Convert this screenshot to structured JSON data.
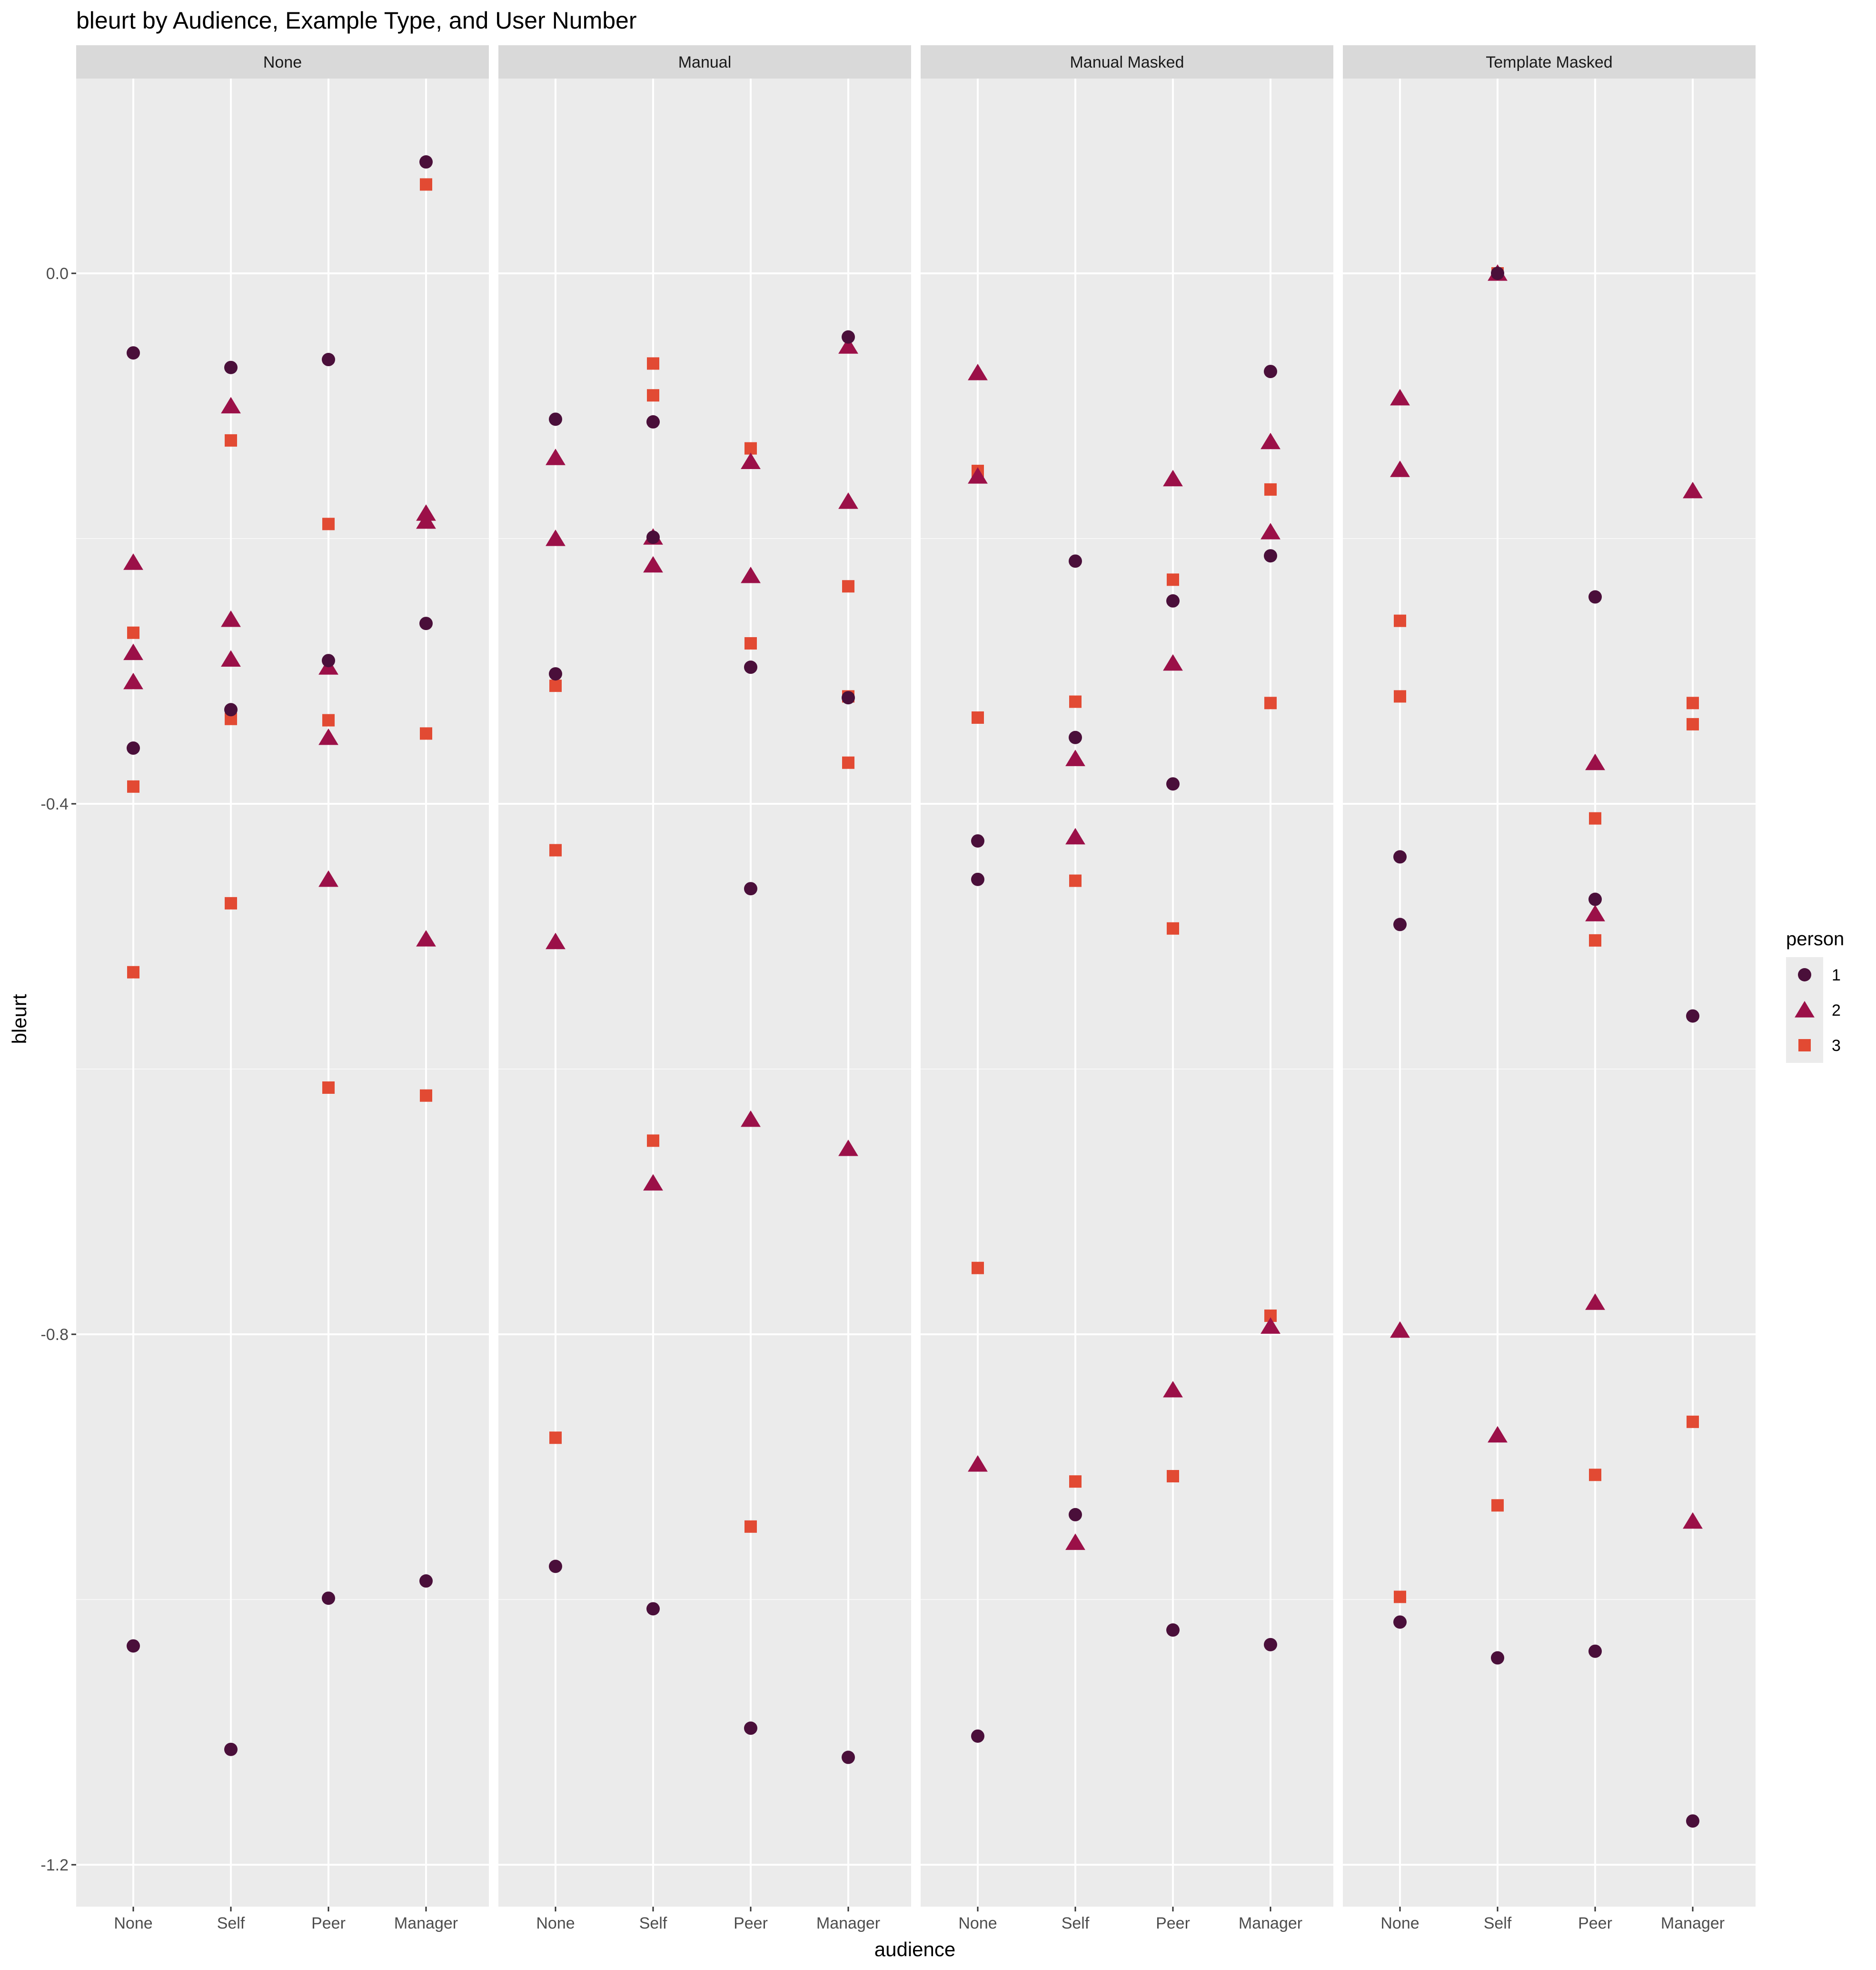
{
  "chart_data": {
    "type": "scatter",
    "title": "bleurt by Audience, Example Type, and User Number",
    "xlabel": "audience",
    "ylabel": "bleurt",
    "categories": [
      "None",
      "Self",
      "Peer",
      "Manager"
    ],
    "facets": [
      "None",
      "Manual",
      "Manual Masked",
      "Template Masked"
    ],
    "y_ticks": [
      0.0,
      -0.4,
      -0.8,
      -1.2
    ],
    "y_tick_labels": [
      "0.0",
      "-0.4",
      "-0.8",
      "-1.2"
    ],
    "ylim": [
      -1.23,
      0.16
    ],
    "grid": true,
    "legend": {
      "title": "person",
      "position": "right"
    },
    "colors": {
      "1": "#4a0f3a",
      "2": "#9b1048",
      "3": "#e24a33"
    },
    "series": [
      {
        "name": "1",
        "shape": "circle",
        "points": [
          {
            "facet": "None",
            "x": "None",
            "y": -0.06
          },
          {
            "facet": "None",
            "x": "None",
            "y": -0.358
          },
          {
            "facet": "None",
            "x": "None",
            "y": -1.035
          },
          {
            "facet": "None",
            "x": "Self",
            "y": -0.071
          },
          {
            "facet": "None",
            "x": "Self",
            "y": -0.329
          },
          {
            "facet": "None",
            "x": "Self",
            "y": -1.113
          },
          {
            "facet": "None",
            "x": "Peer",
            "y": -0.065
          },
          {
            "facet": "None",
            "x": "Peer",
            "y": -0.292
          },
          {
            "facet": "None",
            "x": "Peer",
            "y": -0.999
          },
          {
            "facet": "None",
            "x": "Manager",
            "y": 0.084
          },
          {
            "facet": "None",
            "x": "Manager",
            "y": -0.264
          },
          {
            "facet": "None",
            "x": "Manager",
            "y": -0.986
          },
          {
            "facet": "Manual",
            "x": "None",
            "y": -0.11
          },
          {
            "facet": "Manual",
            "x": "None",
            "y": -0.302
          },
          {
            "facet": "Manual",
            "x": "None",
            "y": -0.975
          },
          {
            "facet": "Manual",
            "x": "Self",
            "y": -0.112
          },
          {
            "facet": "Manual",
            "x": "Self",
            "y": -0.199
          },
          {
            "facet": "Manual",
            "x": "Self",
            "y": -1.007
          },
          {
            "facet": "Manual",
            "x": "Peer",
            "y": -0.297
          },
          {
            "facet": "Manual",
            "x": "Peer",
            "y": -0.464
          },
          {
            "facet": "Manual",
            "x": "Peer",
            "y": -1.097
          },
          {
            "facet": "Manual",
            "x": "Manager",
            "y": -0.048
          },
          {
            "facet": "Manual",
            "x": "Manager",
            "y": -0.32
          },
          {
            "facet": "Manual",
            "x": "Manager",
            "y": -1.119
          },
          {
            "facet": "Manual Masked",
            "x": "None",
            "y": -0.428
          },
          {
            "facet": "Manual Masked",
            "x": "None",
            "y": -0.457
          },
          {
            "facet": "Manual Masked",
            "x": "None",
            "y": -1.103
          },
          {
            "facet": "Manual Masked",
            "x": "Self",
            "y": -0.217
          },
          {
            "facet": "Manual Masked",
            "x": "Self",
            "y": -0.35
          },
          {
            "facet": "Manual Masked",
            "x": "Self",
            "y": -0.936
          },
          {
            "facet": "Manual Masked",
            "x": "Peer",
            "y": -0.247
          },
          {
            "facet": "Manual Masked",
            "x": "Peer",
            "y": -0.385
          },
          {
            "facet": "Manual Masked",
            "x": "Peer",
            "y": -1.023
          },
          {
            "facet": "Manual Masked",
            "x": "Manager",
            "y": -0.074
          },
          {
            "facet": "Manual Masked",
            "x": "Manager",
            "y": -0.213
          },
          {
            "facet": "Manual Masked",
            "x": "Manager",
            "y": -1.034
          },
          {
            "facet": "Template Masked",
            "x": "None",
            "y": -0.44
          },
          {
            "facet": "Template Masked",
            "x": "None",
            "y": -0.491
          },
          {
            "facet": "Template Masked",
            "x": "None",
            "y": -1.017
          },
          {
            "facet": "Template Masked",
            "x": "Self",
            "y": 0.0
          },
          {
            "facet": "Template Masked",
            "x": "Self",
            "y": -1.044
          },
          {
            "facet": "Template Masked",
            "x": "Peer",
            "y": -0.244
          },
          {
            "facet": "Template Masked",
            "x": "Peer",
            "y": -0.472
          },
          {
            "facet": "Template Masked",
            "x": "Peer",
            "y": -1.039
          },
          {
            "facet": "Template Masked",
            "x": "Manager",
            "y": -0.56
          },
          {
            "facet": "Template Masked",
            "x": "Manager",
            "y": -1.167
          }
        ]
      },
      {
        "name": "2",
        "shape": "triangle",
        "points": [
          {
            "facet": "None",
            "x": "None",
            "y": -0.218
          },
          {
            "facet": "None",
            "x": "None",
            "y": -0.286
          },
          {
            "facet": "None",
            "x": "None",
            "y": -0.308
          },
          {
            "facet": "None",
            "x": "Self",
            "y": -0.1
          },
          {
            "facet": "None",
            "x": "Self",
            "y": -0.261
          },
          {
            "facet": "None",
            "x": "Self",
            "y": -0.291
          },
          {
            "facet": "None",
            "x": "Peer",
            "y": -0.297
          },
          {
            "facet": "None",
            "x": "Peer",
            "y": -0.35
          },
          {
            "facet": "None",
            "x": "Peer",
            "y": -0.457
          },
          {
            "facet": "None",
            "x": "Manager",
            "y": -0.181
          },
          {
            "facet": "None",
            "x": "Manager",
            "y": -0.187
          },
          {
            "facet": "None",
            "x": "Manager",
            "y": -0.502
          },
          {
            "facet": "Manual",
            "x": "None",
            "y": -0.139
          },
          {
            "facet": "Manual",
            "x": "None",
            "y": -0.2
          },
          {
            "facet": "Manual",
            "x": "None",
            "y": -0.504
          },
          {
            "facet": "Manual",
            "x": "Self",
            "y": -0.199
          },
          {
            "facet": "Manual",
            "x": "Self",
            "y": -0.22
          },
          {
            "facet": "Manual",
            "x": "Self",
            "y": -0.686
          },
          {
            "facet": "Manual",
            "x": "Peer",
            "y": -0.142
          },
          {
            "facet": "Manual",
            "x": "Peer",
            "y": -0.228
          },
          {
            "facet": "Manual",
            "x": "Peer",
            "y": -0.638
          },
          {
            "facet": "Manual",
            "x": "Manager",
            "y": -0.055
          },
          {
            "facet": "Manual",
            "x": "Manager",
            "y": -0.172
          },
          {
            "facet": "Manual",
            "x": "Manager",
            "y": -0.66
          },
          {
            "facet": "Manual Masked",
            "x": "None",
            "y": -0.075
          },
          {
            "facet": "Manual Masked",
            "x": "None",
            "y": -0.153
          },
          {
            "facet": "Manual Masked",
            "x": "None",
            "y": -0.898
          },
          {
            "facet": "Manual Masked",
            "x": "Self",
            "y": -0.366
          },
          {
            "facet": "Manual Masked",
            "x": "Self",
            "y": -0.425
          },
          {
            "facet": "Manual Masked",
            "x": "Self",
            "y": -0.957
          },
          {
            "facet": "Manual Masked",
            "x": "Peer",
            "y": -0.155
          },
          {
            "facet": "Manual Masked",
            "x": "Peer",
            "y": -0.294
          },
          {
            "facet": "Manual Masked",
            "x": "Peer",
            "y": -0.842
          },
          {
            "facet": "Manual Masked",
            "x": "Manager",
            "y": -0.127
          },
          {
            "facet": "Manual Masked",
            "x": "Manager",
            "y": -0.195
          },
          {
            "facet": "Manual Masked",
            "x": "Manager",
            "y": -0.794
          },
          {
            "facet": "Template Masked",
            "x": "None",
            "y": -0.094
          },
          {
            "facet": "Template Masked",
            "x": "None",
            "y": -0.148
          },
          {
            "facet": "Template Masked",
            "x": "None",
            "y": -0.797
          },
          {
            "facet": "Template Masked",
            "x": "Self",
            "y": 0.0
          },
          {
            "facet": "Template Masked",
            "x": "Self",
            "y": -0.876
          },
          {
            "facet": "Template Masked",
            "x": "Peer",
            "y": -0.369
          },
          {
            "facet": "Template Masked",
            "x": "Peer",
            "y": -0.483
          },
          {
            "facet": "Template Masked",
            "x": "Peer",
            "y": -0.776
          },
          {
            "facet": "Template Masked",
            "x": "Manager",
            "y": -0.164
          },
          {
            "facet": "Template Masked",
            "x": "Manager",
            "y": -0.941
          }
        ]
      },
      {
        "name": "3",
        "shape": "square",
        "points": [
          {
            "facet": "None",
            "x": "None",
            "y": -0.271
          },
          {
            "facet": "None",
            "x": "None",
            "y": -0.387
          },
          {
            "facet": "None",
            "x": "None",
            "y": -0.527
          },
          {
            "facet": "None",
            "x": "Self",
            "y": -0.126
          },
          {
            "facet": "None",
            "x": "Self",
            "y": -0.336
          },
          {
            "facet": "None",
            "x": "Self",
            "y": -0.475
          },
          {
            "facet": "None",
            "x": "Peer",
            "y": -0.189
          },
          {
            "facet": "None",
            "x": "Peer",
            "y": -0.337
          },
          {
            "facet": "None",
            "x": "Peer",
            "y": -0.614
          },
          {
            "facet": "None",
            "x": "Manager",
            "y": 0.067
          },
          {
            "facet": "None",
            "x": "Manager",
            "y": -0.347
          },
          {
            "facet": "None",
            "x": "Manager",
            "y": -0.62
          },
          {
            "facet": "Manual",
            "x": "None",
            "y": -0.311
          },
          {
            "facet": "Manual",
            "x": "None",
            "y": -0.435
          },
          {
            "facet": "Manual",
            "x": "None",
            "y": -0.878
          },
          {
            "facet": "Manual",
            "x": "Self",
            "y": -0.068
          },
          {
            "facet": "Manual",
            "x": "Self",
            "y": -0.092
          },
          {
            "facet": "Manual",
            "x": "Self",
            "y": -0.654
          },
          {
            "facet": "Manual",
            "x": "Peer",
            "y": -0.132
          },
          {
            "facet": "Manual",
            "x": "Peer",
            "y": -0.279
          },
          {
            "facet": "Manual",
            "x": "Peer",
            "y": -0.945
          },
          {
            "facet": "Manual",
            "x": "Manager",
            "y": -0.236
          },
          {
            "facet": "Manual",
            "x": "Manager",
            "y": -0.319
          },
          {
            "facet": "Manual",
            "x": "Manager",
            "y": -0.369
          },
          {
            "facet": "Manual Masked",
            "x": "None",
            "y": -0.149
          },
          {
            "facet": "Manual Masked",
            "x": "None",
            "y": -0.335
          },
          {
            "facet": "Manual Masked",
            "x": "None",
            "y": -0.75
          },
          {
            "facet": "Manual Masked",
            "x": "Self",
            "y": -0.323
          },
          {
            "facet": "Manual Masked",
            "x": "Self",
            "y": -0.458
          },
          {
            "facet": "Manual Masked",
            "x": "Self",
            "y": -0.911
          },
          {
            "facet": "Manual Masked",
            "x": "Peer",
            "y": -0.231
          },
          {
            "facet": "Manual Masked",
            "x": "Peer",
            "y": -0.494
          },
          {
            "facet": "Manual Masked",
            "x": "Peer",
            "y": -0.907
          },
          {
            "facet": "Manual Masked",
            "x": "Manager",
            "y": -0.163
          },
          {
            "facet": "Manual Masked",
            "x": "Manager",
            "y": -0.324
          },
          {
            "facet": "Manual Masked",
            "x": "Manager",
            "y": -0.786
          },
          {
            "facet": "Template Masked",
            "x": "None",
            "y": -0.262
          },
          {
            "facet": "Template Masked",
            "x": "None",
            "y": -0.319
          },
          {
            "facet": "Template Masked",
            "x": "None",
            "y": -0.998
          },
          {
            "facet": "Template Masked",
            "x": "Self",
            "y": 0.0
          },
          {
            "facet": "Template Masked",
            "x": "Self",
            "y": -0.929
          },
          {
            "facet": "Template Masked",
            "x": "Peer",
            "y": -0.411
          },
          {
            "facet": "Template Masked",
            "x": "Peer",
            "y": -0.503
          },
          {
            "facet": "Template Masked",
            "x": "Peer",
            "y": -0.906
          },
          {
            "facet": "Template Masked",
            "x": "Manager",
            "y": -0.324
          },
          {
            "facet": "Template Masked",
            "x": "Manager",
            "y": -0.34
          },
          {
            "facet": "Template Masked",
            "x": "Manager",
            "y": -0.866
          }
        ]
      }
    ]
  }
}
